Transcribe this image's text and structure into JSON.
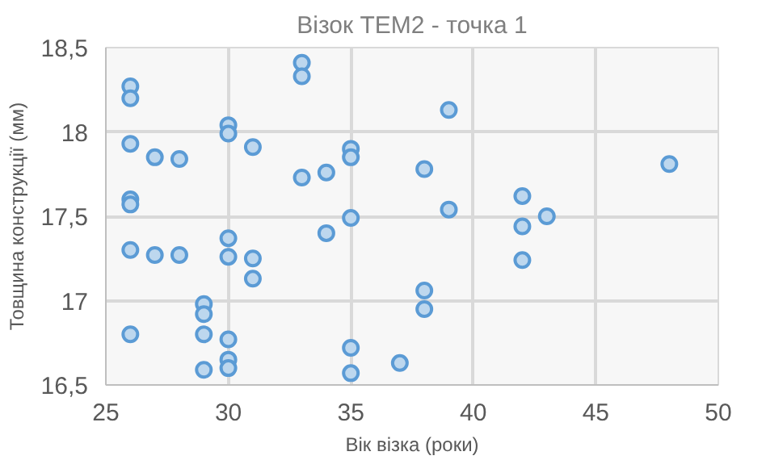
{
  "chart_data": {
    "type": "scatter",
    "title": "Візок ТЕМ2 - точка 1",
    "xlabel": "Вік візка (роки)",
    "ylabel": "Товщина конструкції (мм)",
    "x": [
      26,
      26,
      26,
      26,
      26,
      26,
      26,
      27,
      27,
      28,
      28,
      29,
      29,
      29,
      29,
      30,
      30,
      30,
      30,
      30,
      30,
      30,
      31,
      31,
      31,
      33,
      33,
      33,
      34,
      34,
      35,
      35,
      35,
      35,
      35,
      37,
      38,
      38,
      38,
      39,
      39,
      42,
      42,
      42,
      43,
      48
    ],
    "series": [
      {
        "color": "#5b9bd5",
        "values": [
          18.27,
          18.2,
          17.93,
          17.6,
          17.57,
          17.3,
          16.8,
          17.85,
          17.27,
          17.84,
          17.27,
          16.98,
          16.92,
          16.8,
          16.59,
          18.04,
          17.99,
          17.37,
          17.26,
          16.77,
          16.65,
          16.6,
          17.91,
          17.25,
          17.13,
          18.41,
          18.33,
          17.73,
          17.76,
          17.4,
          17.9,
          17.85,
          17.49,
          16.72,
          16.57,
          16.63,
          17.78,
          17.06,
          16.95,
          18.13,
          17.54,
          17.62,
          17.44,
          17.24,
          17.5,
          17.81
        ]
      }
    ],
    "xlim": [
      25,
      50
    ],
    "xticks": [
      25,
      30,
      35,
      40,
      45,
      50
    ],
    "ylim": [
      16.5,
      18.5
    ],
    "yticks": [
      {
        "value": 16.5,
        "label": "16,5"
      },
      17,
      {
        "value": 17.5,
        "label": "17,5"
      },
      18,
      {
        "value": 18.5,
        "label": "18,5"
      }
    ],
    "grid": true,
    "marker": "circle"
  }
}
